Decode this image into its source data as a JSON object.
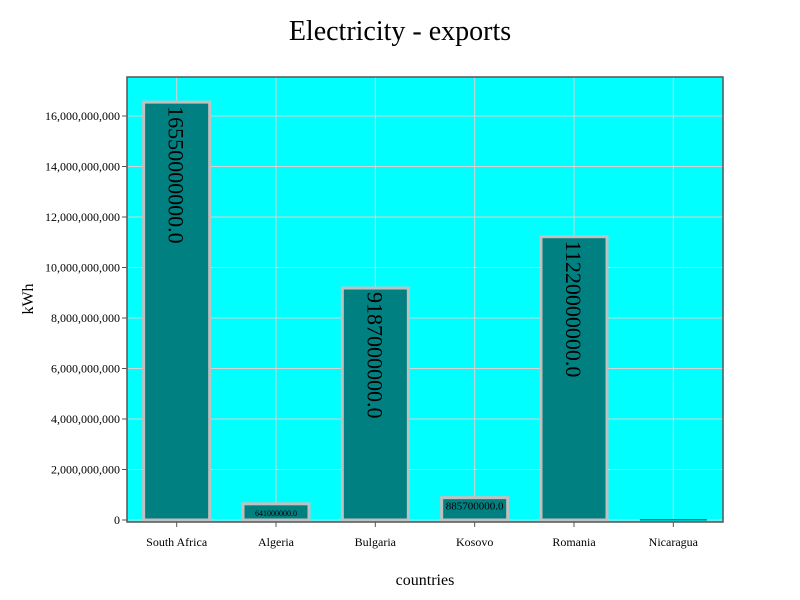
{
  "chart_data": {
    "type": "bar",
    "title": "Electricity - exports",
    "xlabel": "countries",
    "ylabel": "kWh",
    "categories": [
      "South Africa",
      "Algeria",
      "Bulgaria",
      "Kosovo",
      "Romania",
      "Nicaragua"
    ],
    "values": [
      16550000000,
      641000000,
      9187000000,
      885700000,
      11220000000,
      0
    ],
    "value_labels": [
      "16550000000.0",
      "641000000.0",
      "9187000000.0",
      "885700000.0",
      "11220000000.0",
      ""
    ],
    "yticks": [
      0,
      2000000000,
      4000000000,
      6000000000,
      8000000000,
      10000000000,
      12000000000,
      14000000000,
      16000000000
    ],
    "ytick_labels": [
      "0",
      "2,000,000,000",
      "4,000,000,000",
      "6,000,000,000",
      "8,000,000,000",
      "10,000,000,000",
      "12,000,000,000",
      "14,000,000,000",
      "16,000,000,000"
    ],
    "ylim": [
      0,
      17000000000
    ],
    "grid": true,
    "legend": "none",
    "colors": {
      "plot_background": "#00ffff",
      "bar_fill": "#008080",
      "bar_edge": "#c0c0c0",
      "grid": "#d3d3d3",
      "frame": "#555555"
    }
  }
}
